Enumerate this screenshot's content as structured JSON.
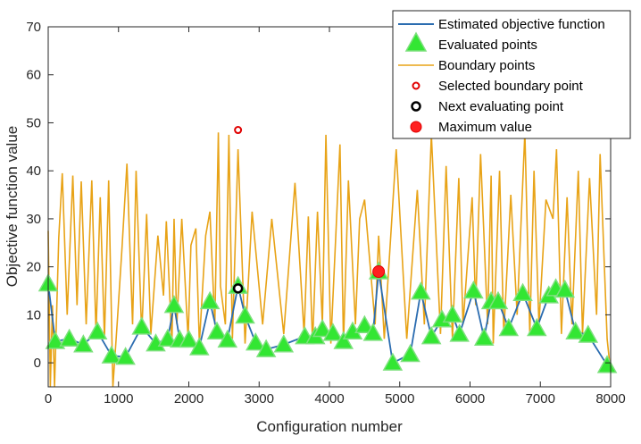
{
  "chart_data": {
    "type": "line",
    "xlabel": "Configuration number",
    "ylabel": "Objective function value",
    "xlim": [
      0,
      8000
    ],
    "ylim": [
      -5,
      70
    ],
    "xticks": [
      0,
      1000,
      2000,
      3000,
      4000,
      5000,
      6000,
      7000,
      8000
    ],
    "yticks": [
      0,
      10,
      20,
      30,
      40,
      50,
      60,
      70
    ],
    "grid": false,
    "legend_position": "top-right",
    "legend": [
      "Estimated objective function",
      "Evaluated points",
      "Boundary points",
      "Selected boundary point",
      "Next evaluating point",
      "Maximum value"
    ],
    "colors": {
      "estimated": "#2b6cb0",
      "evaluated_fill": "#33e633",
      "evaluated_edge": "#7ee07e",
      "boundary": "#e8a317",
      "selected": "#e00000",
      "next": "#000000",
      "maximum": "#ff2020"
    },
    "series": [
      {
        "name": "Estimated objective function",
        "x": [
          0,
          100,
          300,
          500,
          700,
          900,
          1100,
          1330,
          1530,
          1700,
          1790,
          1870,
          2000,
          2150,
          2300,
          2400,
          2550,
          2700,
          2800,
          2950,
          3100,
          3350,
          3650,
          3800,
          3900,
          4050,
          4200,
          4330,
          4500,
          4620,
          4700,
          4900,
          5150,
          5300,
          5450,
          5600,
          5750,
          5850,
          6050,
          6200,
          6300,
          6400,
          6550,
          6750,
          6950,
          7120,
          7220,
          7350,
          7500,
          7680,
          7950
        ],
        "y": [
          16.5,
          4.5,
          5.0,
          3.8,
          6.5,
          1.5,
          1.2,
          7.5,
          4.0,
          5.0,
          12.0,
          4.8,
          4.8,
          3.2,
          12.8,
          6.5,
          4.8,
          16.0,
          9.8,
          4.2,
          2.8,
          3.8,
          5.5,
          5.5,
          7.0,
          6.2,
          4.5,
          6.5,
          7.8,
          6.2,
          19.0,
          0.0,
          1.8,
          14.8,
          5.5,
          9.0,
          10.0,
          6.0,
          15.0,
          5.2,
          12.8,
          12.8,
          7.2,
          14.5,
          7.2,
          14.0,
          15.5,
          15.2,
          6.5,
          5.8,
          -0.5
        ]
      },
      {
        "name": "Boundary points",
        "x": [
          0,
          30,
          60,
          90,
          150,
          200,
          270,
          350,
          410,
          470,
          540,
          620,
          680,
          740,
          800,
          860,
          920,
          980,
          1050,
          1120,
          1200,
          1250,
          1330,
          1400,
          1460,
          1560,
          1640,
          1680,
          1760,
          1790,
          1830,
          1900,
          1990,
          2030,
          2100,
          2150,
          2240,
          2300,
          2370,
          2420,
          2450,
          2520,
          2570,
          2620,
          2700,
          2800,
          2900,
          3050,
          3180,
          3350,
          3510,
          3640,
          3700,
          3760,
          3830,
          3900,
          3950,
          4020,
          4150,
          4200,
          4270,
          4370,
          4430,
          4500,
          4650,
          4700,
          4780,
          4950,
          5100,
          5250,
          5350,
          5450,
          5580,
          5660,
          5750,
          5840,
          5900,
          6030,
          6080,
          6150,
          6250,
          6300,
          6330,
          6420,
          6480,
          6580,
          6670,
          6780,
          6850,
          6910,
          6980,
          7080,
          7180,
          7230,
          7300,
          7380,
          7450,
          7540,
          7600,
          7700,
          7800,
          7850,
          7950,
          8000
        ],
        "y": [
          27.5,
          -5.0,
          12.0,
          -5.0,
          26.0,
          39.5,
          10.0,
          39.0,
          12.0,
          37.8,
          8.0,
          38.0,
          6.0,
          34.5,
          5.0,
          38.0,
          -5.0,
          8.0,
          24.0,
          41.5,
          8.0,
          40.0,
          6.0,
          31.0,
          6.0,
          26.5,
          14.0,
          29.5,
          4.0,
          30.0,
          8.0,
          30.0,
          5.0,
          24.5,
          28.0,
          4.0,
          26.5,
          31.5,
          8.0,
          48.0,
          16.0,
          8.0,
          47.5,
          5.0,
          44.5,
          4.0,
          31.5,
          8.0,
          30.0,
          6.0,
          37.5,
          6.0,
          30.5,
          4.0,
          31.5,
          8.0,
          47.5,
          4.0,
          45.5,
          4.0,
          38.0,
          8.0,
          30.0,
          34.0,
          8.0,
          26.5,
          5.0,
          44.5,
          5.0,
          36.0,
          8.0,
          47.5,
          6.0,
          41.0,
          5.0,
          38.5,
          8.0,
          34.5,
          12.0,
          43.5,
          8.0,
          39.0,
          4.0,
          40.0,
          6.0,
          35.0,
          10.0,
          48.0,
          6.0,
          40.0,
          8.0,
          34.0,
          30.0,
          44.5,
          6.0,
          34.5,
          8.0,
          40.0,
          6.0,
          38.5,
          10.0,
          43.5,
          5.0,
          -2.0
        ]
      },
      {
        "name": "Evaluated points",
        "x": [
          0,
          100,
          300,
          500,
          700,
          900,
          1100,
          1330,
          1530,
          1700,
          1790,
          1870,
          2000,
          2150,
          2300,
          2400,
          2550,
          2700,
          2800,
          2950,
          3100,
          3350,
          3650,
          3800,
          3900,
          4050,
          4200,
          4330,
          4500,
          4620,
          4700,
          4900,
          5150,
          5300,
          5450,
          5600,
          5750,
          5850,
          6050,
          6200,
          6300,
          6400,
          6550,
          6750,
          6950,
          7120,
          7220,
          7350,
          7500,
          7680,
          7950
        ],
        "y": [
          16.5,
          4.5,
          5.0,
          3.8,
          6.5,
          1.5,
          1.2,
          7.5,
          4.0,
          5.0,
          12.0,
          4.8,
          4.8,
          3.2,
          12.8,
          6.5,
          4.8,
          16.0,
          9.8,
          4.2,
          2.8,
          3.8,
          5.5,
          5.5,
          7.0,
          6.2,
          4.5,
          6.5,
          7.8,
          6.2,
          19.0,
          0.0,
          1.8,
          14.8,
          5.5,
          9.0,
          10.0,
          6.0,
          15.0,
          5.2,
          12.8,
          12.8,
          7.2,
          14.5,
          7.2,
          14.0,
          15.5,
          15.2,
          6.5,
          5.8,
          -0.5
        ]
      },
      {
        "name": "Selected boundary point",
        "x": [
          2700
        ],
        "y": [
          48.5
        ]
      },
      {
        "name": "Next evaluating point",
        "x": [
          2700
        ],
        "y": [
          15.5
        ]
      },
      {
        "name": "Maximum value",
        "x": [
          4700
        ],
        "y": [
          19.0
        ]
      }
    ]
  }
}
